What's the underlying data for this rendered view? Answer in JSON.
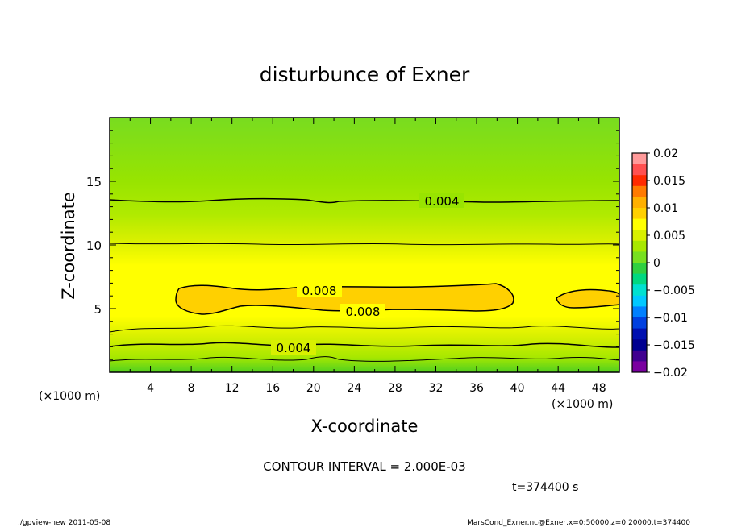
{
  "chart_data": {
    "type": "contour",
    "title": "disturbunce of Exner",
    "xlabel": "X-coordinate",
    "ylabel": "Z-coordinate",
    "x_unit_left": "(×1000 m)",
    "x_unit_right": "(×1000 m)",
    "xlim": [
      0,
      50
    ],
    "ylim": [
      0,
      20
    ],
    "x_ticks": [
      4,
      8,
      12,
      16,
      20,
      24,
      28,
      32,
      36,
      40,
      44,
      48
    ],
    "y_ticks": [
      5,
      10,
      15
    ],
    "contour_interval_text": "CONTOUR INTERVAL = 2.000E-03",
    "time_text": "t=374400 s",
    "contour_labels": [
      {
        "text": "0.004",
        "x": 32.5,
        "y": 13.4
      },
      {
        "text": "0.008",
        "x": 20.5,
        "y": 6.1
      },
      {
        "text": "0.008",
        "x": 24.5,
        "y": 4.6
      },
      {
        "text": "0.004",
        "x": 18.0,
        "y": 1.9
      }
    ],
    "colorbar": {
      "levels": [
        0.02,
        0.015,
        0.01,
        0.005,
        0,
        -0.005,
        -0.01,
        -0.015,
        -0.02
      ],
      "labels": [
        "0.02",
        "0.015",
        "0.01",
        "0.005",
        "0",
        "−0.005",
        "−0.01",
        "−0.015",
        "−0.02"
      ],
      "colors": [
        "#ff9a9a",
        "#ff5050",
        "#ff2a00",
        "#ff7a00",
        "#ffb000",
        "#ffd000",
        "#ffff00",
        "#d8f000",
        "#a8e800",
        "#78e020",
        "#30d040",
        "#00d880",
        "#00e0d0",
        "#00c8ff",
        "#0080ff",
        "#0040e0",
        "#0010b0",
        "#000090",
        "#400090",
        "#7a00a0"
      ]
    }
  },
  "footer": {
    "left": "./gpview-new  2011-05-08",
    "right": "MarsCond_Exner.nc@Exner,x=0:50000,z=0:20000,t=374400"
  }
}
